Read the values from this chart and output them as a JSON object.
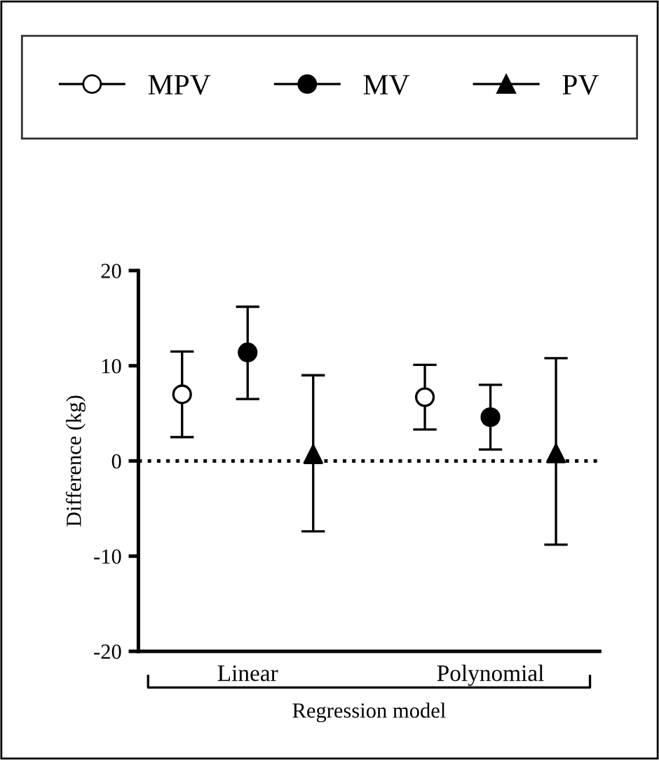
{
  "chart_data": {
    "type": "scatter",
    "ylabel": "Difference (kg)",
    "xlabel": "Regression model",
    "categories": [
      "Linear",
      "Polynomial"
    ],
    "series": [
      {
        "name": "MPV",
        "color": "#ffffff",
        "marker": "circle",
        "values": [
          7.0,
          6.7
        ],
        "errors": [
          [
            2.5,
            11.5
          ],
          [
            3.3,
            10.1
          ]
        ]
      },
      {
        "name": "MV",
        "color": "#000000",
        "marker": "circle",
        "values": [
          11.4,
          4.6
        ],
        "errors": [
          [
            6.5,
            16.2
          ],
          [
            1.2,
            8.0
          ]
        ]
      },
      {
        "name": "PV",
        "color": "#000000",
        "marker": "triangle",
        "values": [
          0.7,
          0.8
        ],
        "errors": [
          [
            -7.4,
            9.0
          ],
          [
            -8.8,
            10.8
          ]
        ]
      }
    ],
    "ylim": [
      -20,
      20
    ],
    "yticks": [
      {
        "value": -20,
        "label": "-20"
      },
      {
        "value": -10,
        "label": "-10"
      },
      0,
      10,
      20
    ],
    "ref_lines": [
      {
        "axis": "y",
        "value": 0,
        "line_style": "dotted",
        "color": "#000000"
      }
    ],
    "legend": "top",
    "grid": false
  }
}
